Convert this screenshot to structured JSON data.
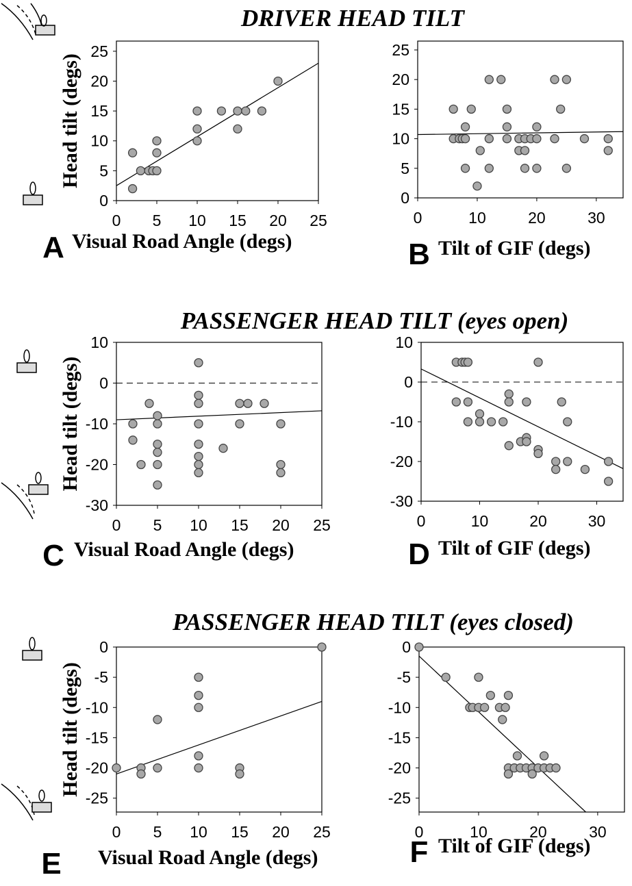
{
  "section_titles": [
    "DRIVER HEAD TILT",
    "PASSENGER HEAD TILT (eyes open)",
    "PASSENGER HEAD TILT (eyes closed)"
  ],
  "chart_data": [
    {
      "type": "scatter",
      "panel": "A",
      "xlabel": "Visual Road Angle (degs)",
      "ylabel": "Head tilt  (degs)",
      "x": [
        2,
        2,
        3,
        4,
        4.5,
        5,
        5,
        5,
        10,
        10,
        10,
        13,
        15,
        15,
        16,
        18,
        20
      ],
      "y": [
        8,
        2,
        5,
        5,
        5,
        5,
        8,
        10,
        15,
        12,
        10,
        15,
        15,
        12,
        15,
        15,
        20
      ],
      "xlim": [
        0,
        25
      ],
      "ylim": [
        0,
        26.7
      ],
      "xticks": [
        0,
        5,
        10,
        15,
        20,
        25
      ],
      "yticks": [
        0,
        5,
        10,
        15,
        20,
        25
      ],
      "trendline": {
        "x": [
          0,
          25
        ],
        "y": [
          2.5,
          23
        ]
      },
      "color": "#a8a8a8"
    },
    {
      "type": "scatter",
      "panel": "B",
      "xlabel": "Tilt of GIF (degs)",
      "x": [
        6,
        6,
        7,
        7.5,
        8,
        8,
        8,
        9,
        10,
        10.5,
        12,
        12,
        12,
        14,
        15,
        15,
        15,
        17,
        17,
        18,
        18,
        18,
        19,
        20,
        20,
        20,
        23,
        23,
        24,
        25,
        25,
        28,
        32,
        32
      ],
      "y": [
        15,
        10,
        10,
        10,
        10,
        12,
        5,
        15,
        2,
        8,
        20,
        10,
        5,
        20,
        15,
        12,
        10,
        10,
        8,
        10,
        8,
        5,
        10,
        12,
        10,
        5,
        20,
        10,
        15,
        20,
        5,
        10,
        10,
        8
      ],
      "xlim": [
        0,
        34.5
      ],
      "ylim": [
        0,
        26.5
      ],
      "xticks": [
        0,
        10,
        20,
        30
      ],
      "yticks": [
        0,
        5,
        10,
        15,
        20,
        25
      ],
      "trendline": {
        "x": [
          0,
          34.5
        ],
        "y": [
          10.7,
          11.2
        ]
      },
      "color": "#a8a8a8"
    },
    {
      "type": "scatter",
      "panel": "C",
      "xlabel": "Visual Road Angle (degs)",
      "ylabel": "Head tilt  (degs)",
      "x": [
        2,
        2,
        3,
        4,
        5,
        5,
        5,
        5,
        5,
        5,
        10,
        10,
        10,
        10,
        10,
        10,
        10,
        10,
        13,
        15,
        15,
        16,
        18,
        20,
        20,
        20
      ],
      "y": [
        -10,
        -14,
        -20,
        -5,
        -8,
        -10,
        -15,
        -17,
        -20,
        -25,
        5,
        -3,
        -5,
        -10,
        -15,
        -18,
        -20,
        -22,
        -16,
        -5,
        -10,
        -5,
        -5,
        -10,
        -20,
        -22
      ],
      "xlim": [
        0,
        25
      ],
      "ylim": [
        -30,
        10
      ],
      "xticks": [
        0,
        5,
        10,
        15,
        20,
        25
      ],
      "yticks": [
        -30,
        -20,
        -10,
        0,
        10
      ],
      "hline": 0,
      "trendline": {
        "x": [
          0,
          25
        ],
        "y": [
          -9,
          -6.8
        ]
      },
      "color": "#a8a8a8"
    },
    {
      "type": "scatter",
      "panel": "D",
      "xlabel": "Tilt of GIF (degs)",
      "x": [
        6,
        7,
        7.5,
        8,
        6,
        8,
        8,
        10,
        10,
        12,
        14,
        15,
        15,
        15,
        17,
        18,
        18,
        18,
        20,
        20,
        20,
        23,
        23,
        24,
        25,
        25,
        28,
        32,
        32
      ],
      "y": [
        5,
        5,
        5,
        5,
        -5,
        -5,
        -10,
        -8,
        -10,
        -10,
        -10,
        -3,
        -5,
        -16,
        -15,
        -14,
        -15,
        -5,
        5,
        -17,
        -18,
        -20,
        -22,
        -5,
        -10,
        -20,
        -22,
        -20,
        -25
      ],
      "xlim": [
        0,
        34.5
      ],
      "ylim": [
        -30,
        10
      ],
      "xticks": [
        0,
        10,
        20,
        30
      ],
      "yticks": [
        -30,
        -20,
        -10,
        0,
        10
      ],
      "hline": 0,
      "trendline": {
        "x": [
          0,
          34.5
        ],
        "y": [
          3.3,
          -21.8
        ]
      },
      "color": "#a8a8a8"
    },
    {
      "type": "scatter",
      "panel": "E",
      "xlabel": "Visual Road Angle (degs)",
      "ylabel": "Head tilt  (degs)",
      "x": [
        0,
        3,
        3,
        5,
        5,
        10,
        10,
        10,
        10,
        10,
        15,
        15,
        25
      ],
      "y": [
        -20,
        -20,
        -21,
        -12,
        -20,
        -5,
        -8,
        -10,
        -18,
        -20,
        -20,
        -21,
        0
      ],
      "xlim": [
        0,
        25
      ],
      "ylim": [
        -27.3,
        0
      ],
      "xticks": [
        0,
        5,
        10,
        15,
        20,
        25
      ],
      "yticks": [
        -25,
        -20,
        -15,
        -10,
        -5,
        0
      ],
      "trendline": {
        "x": [
          0,
          25
        ],
        "y": [
          -21,
          -9
        ]
      },
      "color": "#a8a8a8"
    },
    {
      "type": "scatter",
      "panel": "F",
      "xlabel": "Tilt of GIF (degs)",
      "x": [
        0,
        4.5,
        8.5,
        9,
        10,
        10,
        11,
        12,
        13.5,
        14,
        14.5,
        15,
        15,
        15,
        16,
        16.5,
        17,
        18,
        19,
        19,
        20,
        21,
        21,
        22,
        23
      ],
      "y": [
        0,
        -5,
        -10,
        -10,
        -10,
        -5,
        -10,
        -8,
        -10,
        -12,
        -10,
        -8,
        -20,
        -21,
        -20,
        -18,
        -20,
        -20,
        -20,
        -21,
        -20,
        -20,
        -18,
        -20,
        -20
      ],
      "xlim": [
        0,
        34.5
      ],
      "ylim": [
        -27.3,
        0
      ],
      "xticks": [
        0,
        10,
        20,
        30
      ],
      "yticks": [
        -25,
        -20,
        -15,
        -10,
        -5,
        0
      ],
      "trendline": {
        "x": [
          0,
          28
        ],
        "y": [
          -1.5,
          -27.3
        ]
      },
      "color": "#a8a8a8"
    }
  ]
}
